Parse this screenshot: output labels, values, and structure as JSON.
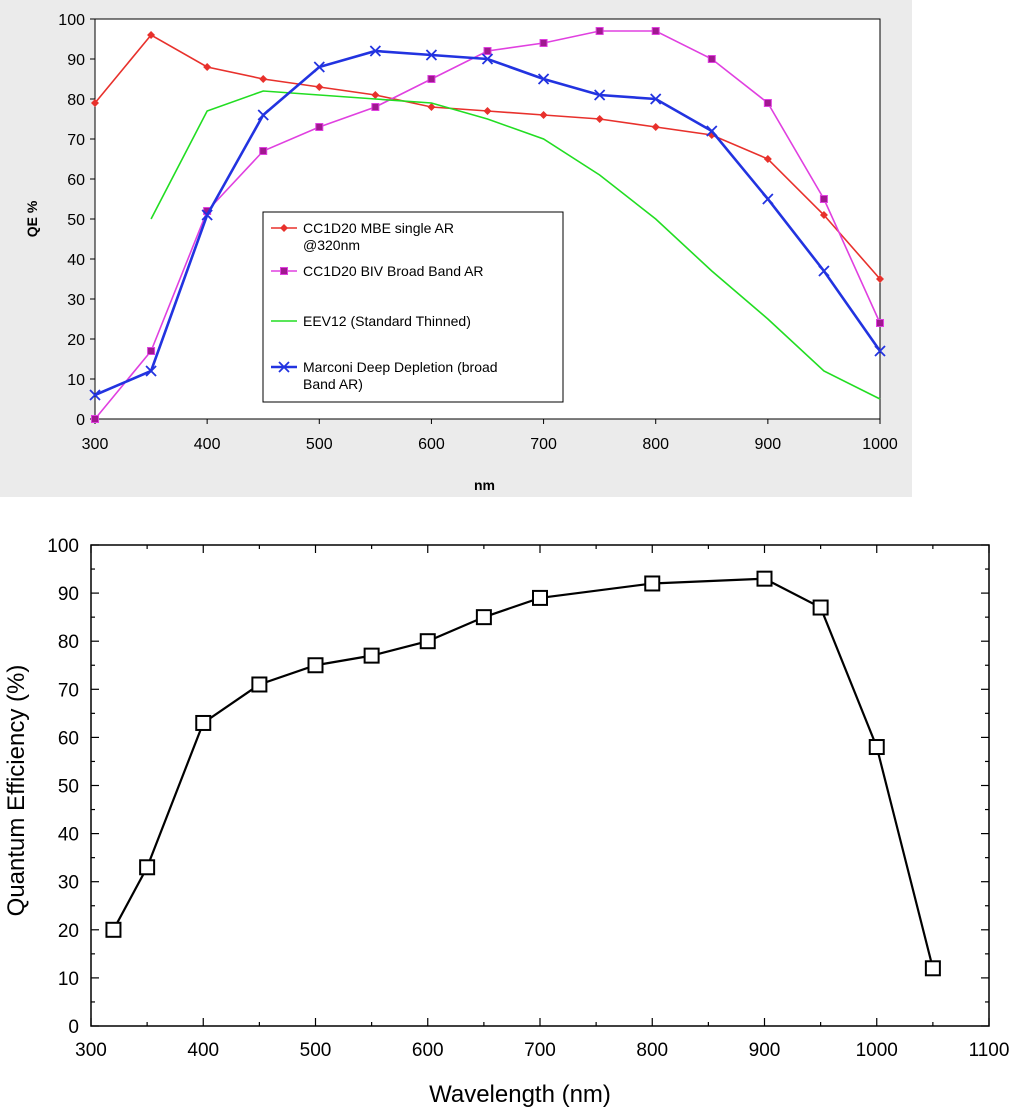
{
  "chart_data": [
    {
      "type": "line",
      "xlabel": "nm",
      "ylabel": "QE %",
      "xlim": [
        300,
        1000
      ],
      "ylim": [
        0,
        100
      ],
      "x_ticks": [
        300,
        400,
        500,
        600,
        700,
        800,
        900,
        1000
      ],
      "y_ticks": [
        0,
        10,
        20,
        30,
        40,
        50,
        60,
        70,
        80,
        90,
        100
      ],
      "grid": false,
      "legend_position": "center",
      "series": [
        {
          "name": "CC1D20 MBE single AR @320nm",
          "legend_lines": [
            "CC1D20 MBE single AR",
            "@320nm"
          ],
          "color": "#e8312c",
          "marker": "diamond",
          "x": [
            300,
            350,
            400,
            450,
            500,
            550,
            600,
            650,
            700,
            750,
            800,
            850,
            900,
            950,
            1000
          ],
          "y": [
            79,
            96,
            88,
            85,
            83,
            81,
            78,
            77,
            76,
            75,
            73,
            71,
            65,
            51,
            35
          ]
        },
        {
          "name": "CC1D20 BIV Broad Band AR",
          "legend_lines": [
            "CC1D20 BIV Broad Band AR"
          ],
          "color": "#e040e0",
          "marker": "square",
          "x": [
            300,
            350,
            400,
            450,
            500,
            550,
            600,
            650,
            700,
            750,
            800,
            850,
            900,
            950,
            1000
          ],
          "y": [
            0,
            17,
            52,
            67,
            73,
            78,
            85,
            92,
            94,
            97,
            97,
            90,
            79,
            55,
            24
          ]
        },
        {
          "name": "EEV12 (Standard Thinned)",
          "legend_lines": [
            "EEV12 (Standard Thinned)"
          ],
          "color": "#22dd22",
          "marker": "none",
          "x": [
            350,
            400,
            450,
            500,
            550,
            600,
            650,
            700,
            750,
            800,
            850,
            900,
            950,
            1000
          ],
          "y": [
            50,
            77,
            82,
            81,
            80,
            79,
            75,
            70,
            61,
            50,
            37,
            25,
            12,
            5
          ]
        },
        {
          "name": "Marconi Deep Depletion (broad Band AR)",
          "legend_lines": [
            "Marconi Deep Depletion (broad",
            "Band AR)"
          ],
          "color": "#2233e0",
          "marker": "x",
          "x": [
            300,
            350,
            400,
            450,
            500,
            550,
            600,
            650,
            700,
            750,
            800,
            850,
            900,
            950,
            1000
          ],
          "y": [
            6,
            12,
            51,
            76,
            88,
            92,
            91,
            90,
            85,
            81,
            80,
            72,
            55,
            37,
            17
          ]
        }
      ]
    },
    {
      "type": "line",
      "xlabel": "Wavelength (nm)",
      "ylabel": "Quantum Efficiency (%)",
      "xlim": [
        300,
        1100
      ],
      "ylim": [
        0,
        100
      ],
      "x_ticks": [
        300,
        400,
        500,
        600,
        700,
        800,
        900,
        1000,
        1100
      ],
      "y_ticks": [
        0,
        10,
        20,
        30,
        40,
        50,
        60,
        70,
        80,
        90,
        100
      ],
      "grid": false,
      "series": [
        {
          "color": "#000000",
          "marker": "open-square",
          "x": [
            320,
            350,
            400,
            450,
            500,
            550,
            600,
            650,
            700,
            800,
            900,
            950,
            1000,
            1050
          ],
          "y": [
            20,
            33,
            63,
            71,
            75,
            77,
            80,
            85,
            89,
            92,
            93,
            87,
            58,
            12
          ]
        }
      ]
    }
  ]
}
